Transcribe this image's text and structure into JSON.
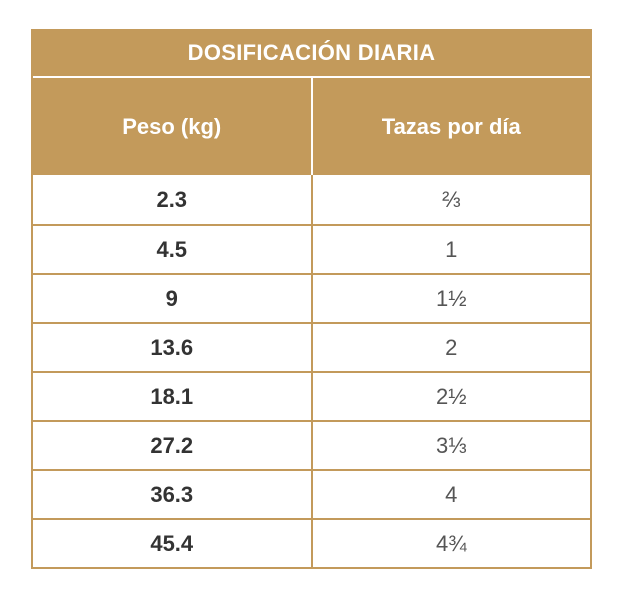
{
  "title": "DOSIFICACIÓN DIARIA",
  "headers": {
    "weight": "Peso (kg)",
    "cups": "Tazas por día"
  },
  "rows": [
    {
      "weight": "2.3",
      "cups": "⅔"
    },
    {
      "weight": "4.5",
      "cups": "1"
    },
    {
      "weight": "9",
      "cups": "1½"
    },
    {
      "weight": "13.6",
      "cups": "2"
    },
    {
      "weight": "18.1",
      "cups": "2½"
    },
    {
      "weight": "27.2",
      "cups": "3⅓"
    },
    {
      "weight": "36.3",
      "cups": "4"
    },
    {
      "weight": "45.4",
      "cups": "4¾"
    }
  ],
  "colors": {
    "accent": "#c39a5b",
    "header_text": "#ffffff",
    "weight_text": "#333333",
    "cups_text": "#555555"
  }
}
